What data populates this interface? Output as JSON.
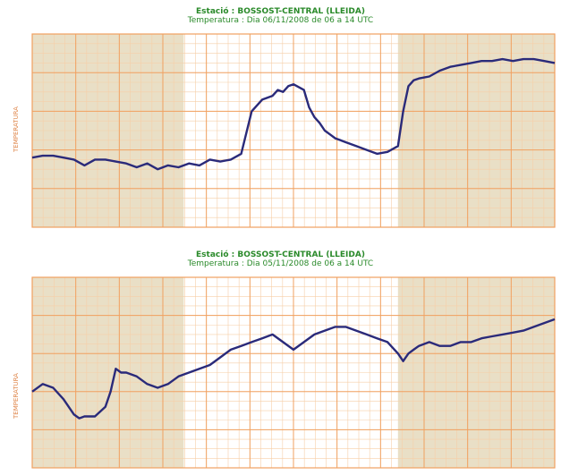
{
  "colors": {
    "night_shade": "#e9dfc6",
    "day_bg": "#ffffff",
    "grid_major": "#f0a060",
    "grid_minor": "#f6cfa8",
    "line": "#2a2a7a",
    "title": "#2a8a2a",
    "label": "#e08a50"
  },
  "chart_data": [
    {
      "type": "line",
      "title": "Estació : BOSSOST-CENTRAL (LLEIDA)",
      "subtitle": "Temperatura : Dia 06/11/2008 de 06 a 14 UTC",
      "ylabel": "TEMPERATURA",
      "xlim": [
        0,
        100
      ],
      "ylim": [
        0,
        100
      ],
      "night_shading": [
        [
          0,
          29
        ],
        [
          70,
          100
        ]
      ],
      "series": [
        {
          "name": "",
          "x": [
            0,
            2,
            4,
            6,
            8,
            10,
            12,
            14,
            16,
            18,
            20,
            22,
            24,
            26,
            28,
            30,
            32,
            34,
            36,
            38,
            40,
            42,
            44,
            46,
            47,
            48,
            49,
            50,
            52,
            53,
            54,
            55,
            56,
            57,
            58,
            59,
            60,
            62,
            64,
            66,
            68,
            70,
            71,
            72,
            73,
            74,
            76,
            78,
            80,
            82,
            84,
            86,
            88,
            90,
            92,
            94,
            96,
            98,
            100
          ],
          "y": [
            36,
            37,
            37,
            36,
            35,
            32,
            35,
            35,
            34,
            33,
            31,
            33,
            30,
            32,
            31,
            33,
            32,
            35,
            34,
            35,
            38,
            60,
            66,
            68,
            71,
            70,
            73,
            74,
            71,
            62,
            57,
            54,
            50,
            48,
            46,
            45,
            44,
            42,
            40,
            38,
            39,
            42,
            60,
            73,
            76,
            77,
            78,
            81,
            83,
            84,
            85,
            86,
            86,
            87,
            86,
            87,
            87,
            86,
            85
          ]
        }
      ]
    },
    {
      "type": "line",
      "title": "Estació : BOSSOST-CENTRAL (LLEIDA)",
      "subtitle": "Temperatura : Dia 05/11/2008 de 06 a 14 UTC",
      "ylabel": "TEMPERATURA",
      "xlim": [
        0,
        100
      ],
      "ylim": [
        0,
        100
      ],
      "night_shading": [
        [
          0,
          29
        ],
        [
          70,
          100
        ]
      ],
      "series": [
        {
          "name": "",
          "x": [
            0,
            2,
            4,
            6,
            8,
            9,
            10,
            12,
            14,
            15,
            16,
            17,
            18,
            20,
            22,
            24,
            26,
            28,
            30,
            32,
            34,
            36,
            38,
            40,
            42,
            44,
            46,
            48,
            50,
            52,
            54,
            56,
            58,
            60,
            62,
            64,
            66,
            68,
            70,
            71,
            72,
            73,
            74,
            76,
            78,
            80,
            82,
            84,
            86,
            88,
            90,
            92,
            94,
            96,
            98,
            100
          ],
          "y": [
            40,
            44,
            42,
            36,
            28,
            26,
            27,
            27,
            32,
            40,
            52,
            50,
            50,
            48,
            44,
            42,
            44,
            48,
            50,
            52,
            54,
            58,
            62,
            64,
            66,
            68,
            70,
            66,
            62,
            66,
            70,
            72,
            74,
            74,
            72,
            70,
            68,
            66,
            60,
            56,
            60,
            62,
            64,
            66,
            64,
            64,
            66,
            66,
            68,
            69,
            70,
            71,
            72,
            74,
            76,
            78
          ]
        }
      ]
    }
  ]
}
